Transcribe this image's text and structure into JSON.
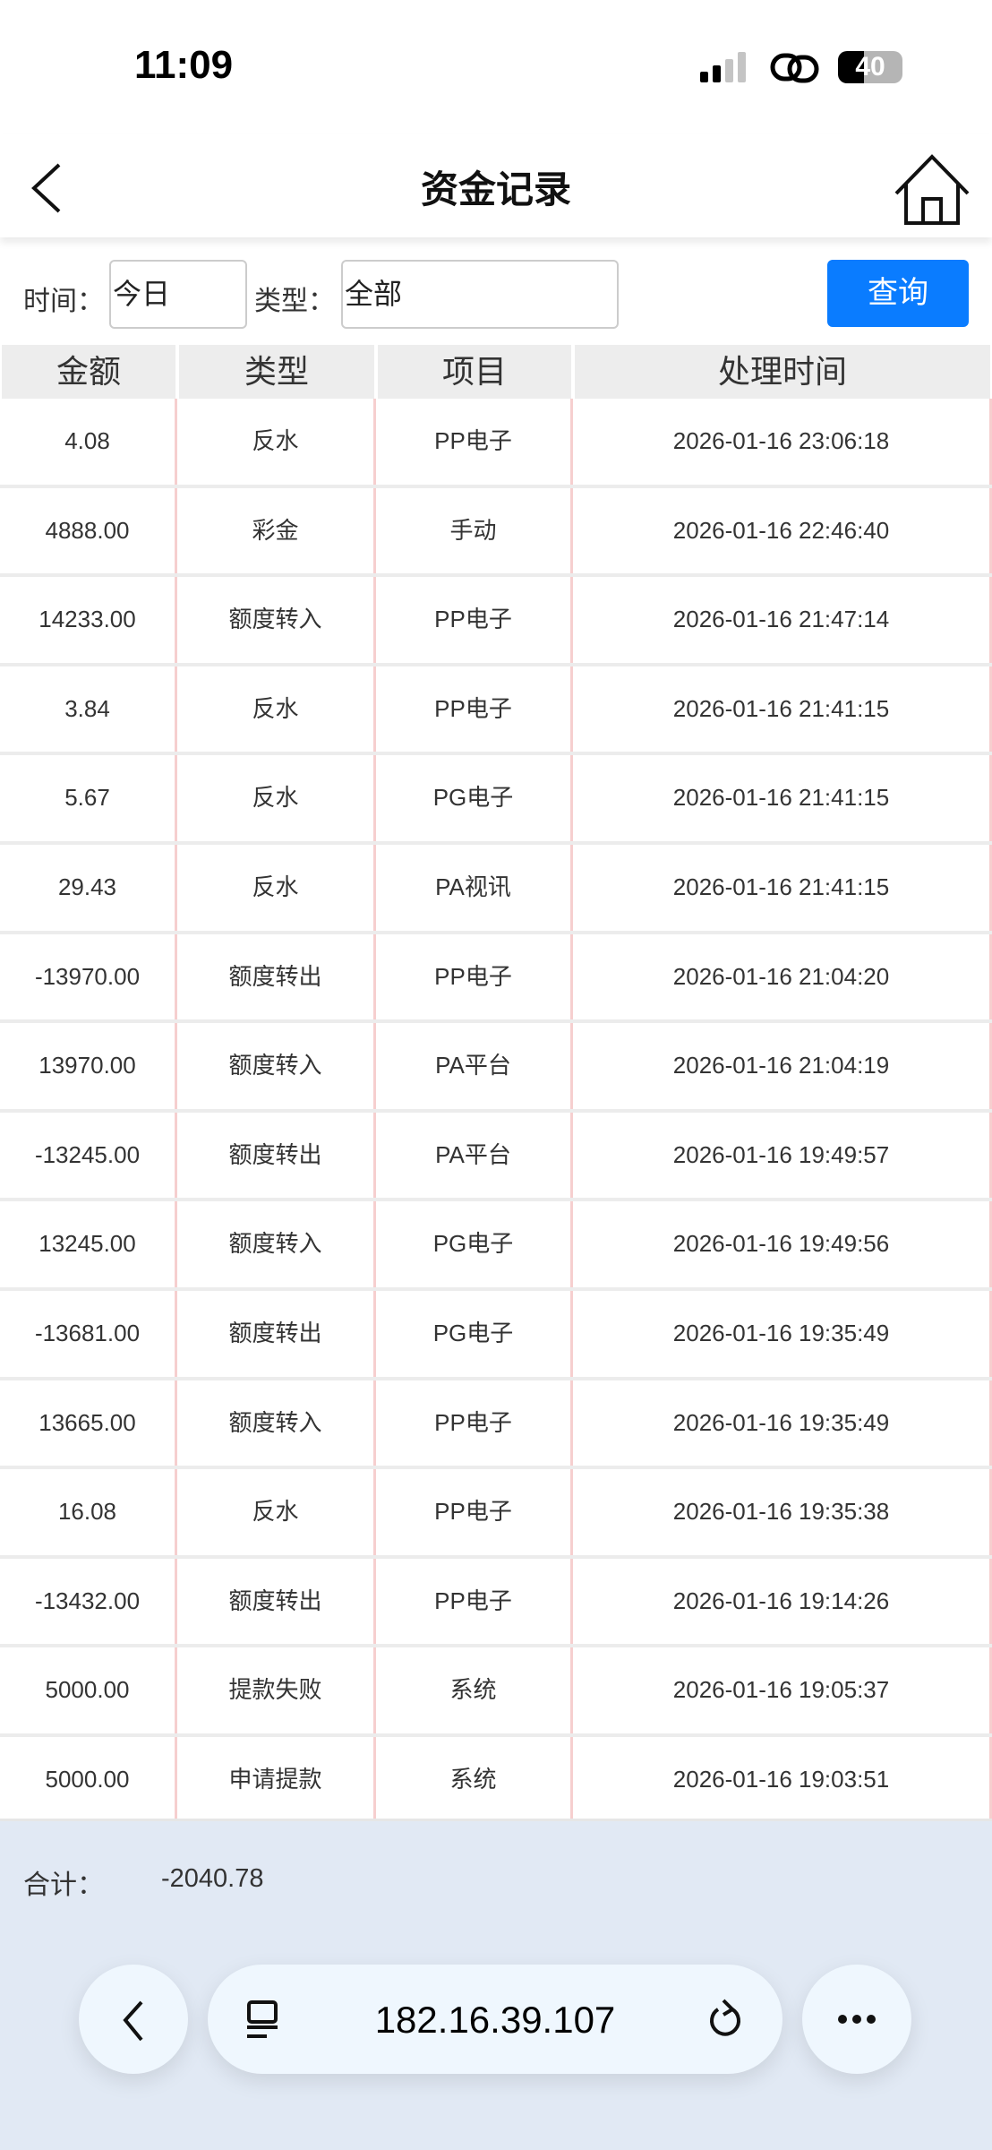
{
  "status_bar": {
    "time": "11:09",
    "battery": "40"
  },
  "header": {
    "title": "资金记录"
  },
  "filter": {
    "time_label": "时间：",
    "time_value": "今日",
    "type_label": "类型：",
    "type_value": "全部",
    "query_button": "查询"
  },
  "table": {
    "columns": [
      "金额",
      "类型",
      "项目",
      "处理时间"
    ],
    "rows": [
      [
        "4.08",
        "反水",
        "PP电子",
        "2026-01-16 23:06:18"
      ],
      [
        "4888.00",
        "彩金",
        "手动",
        "2026-01-16 22:46:40"
      ],
      [
        "14233.00",
        "额度转入",
        "PP电子",
        "2026-01-16 21:47:14"
      ],
      [
        "3.84",
        "反水",
        "PP电子",
        "2026-01-16 21:41:15"
      ],
      [
        "5.67",
        "反水",
        "PG电子",
        "2026-01-16 21:41:15"
      ],
      [
        "29.43",
        "反水",
        "PA视讯",
        "2026-01-16 21:41:15"
      ],
      [
        "-13970.00",
        "额度转出",
        "PP电子",
        "2026-01-16 21:04:20"
      ],
      [
        "13970.00",
        "额度转入",
        "PA平台",
        "2026-01-16 21:04:19"
      ],
      [
        "-13245.00",
        "额度转出",
        "PA平台",
        "2026-01-16 19:49:57"
      ],
      [
        "13245.00",
        "额度转入",
        "PG电子",
        "2026-01-16 19:49:56"
      ],
      [
        "-13681.00",
        "额度转出",
        "PG电子",
        "2026-01-16 19:35:49"
      ],
      [
        "13665.00",
        "额度转入",
        "PP电子",
        "2026-01-16 19:35:49"
      ],
      [
        "16.08",
        "反水",
        "PP电子",
        "2026-01-16 19:35:38"
      ],
      [
        "-13432.00",
        "额度转出",
        "PP电子",
        "2026-01-16 19:14:26"
      ],
      [
        "5000.00",
        "提款失败",
        "系统",
        "2026-01-16 19:05:37"
      ],
      [
        "5000.00",
        "申请提款",
        "系统",
        "2026-01-16 19:03:51"
      ]
    ]
  },
  "summary": {
    "label": "合计：",
    "value": "-2040.78"
  },
  "browser": {
    "url": "182.16.39.107"
  },
  "colors": {
    "accent": "#0a7cff",
    "footer_bg": "#e1e9f4",
    "column_divider": "#f6cfcf"
  }
}
